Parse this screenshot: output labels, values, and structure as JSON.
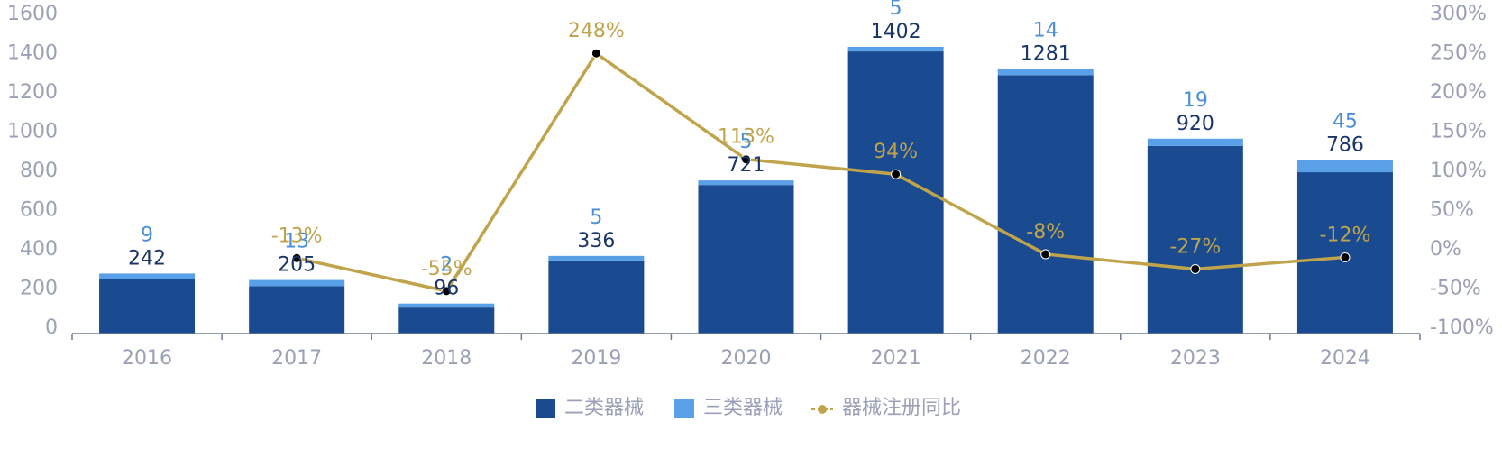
{
  "chart_data": {
    "type": "bar",
    "stacked": true,
    "categories": [
      "2016",
      "2017",
      "2018",
      "2019",
      "2020",
      "2021",
      "2022",
      "2023",
      "2024"
    ],
    "series": [
      {
        "name": "二类器械",
        "type": "bar",
        "axis": "left",
        "color": "#1a4a8f",
        "values": [
          242,
          205,
          96,
          336,
          721,
          1402,
          1281,
          920,
          786
        ]
      },
      {
        "name": "三类器械",
        "type": "bar",
        "axis": "left",
        "color": "#5aa0e8",
        "values": [
          9,
          13,
          2,
          5,
          5,
          5,
          14,
          19,
          45
        ]
      },
      {
        "name": "器械注册同比",
        "type": "line",
        "axis": "right",
        "color": "#c0a44c",
        "values": [
          null,
          -13,
          -55,
          248,
          113,
          94,
          -8,
          -27,
          -12
        ],
        "labels": [
          "",
          "-13%",
          "-55%",
          "248%",
          "113%",
          "94%",
          "-8%",
          "-27%",
          "-12%"
        ]
      }
    ],
    "ylim": [
      0,
      1600
    ],
    "yticks": [
      "0",
      "200",
      "400",
      "600",
      "800",
      "1000",
      "1200",
      "1400",
      "1600"
    ],
    "y2lim": [
      -100,
      300
    ],
    "y2ticks": [
      "-100%",
      "-50%",
      "0%",
      "50%",
      "100%",
      "150%",
      "200%",
      "250%",
      "300%"
    ],
    "legend_position": "bottom-center",
    "grid": false
  }
}
